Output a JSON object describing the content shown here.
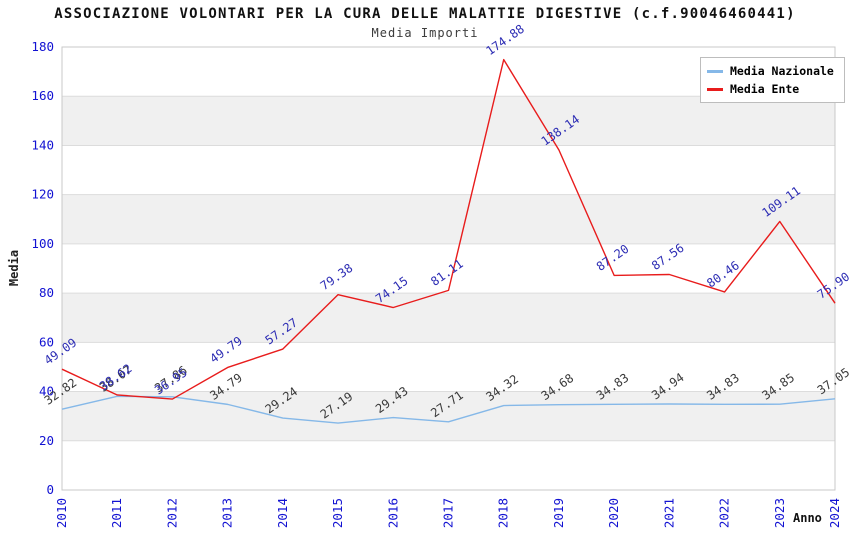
{
  "chart_data": {
    "type": "line",
    "title": "ASSOCIAZIONE VOLONTARI PER LA CURA DELLE MALATTIE DIGESTIVE (c.f.90046460441)",
    "subtitle": "Media Importi",
    "xlabel": "Anno",
    "ylabel": "Media",
    "x": [
      "2010",
      "2011",
      "2012",
      "2013",
      "2014",
      "2015",
      "2016",
      "2017",
      "2018",
      "2019",
      "2020",
      "2021",
      "2022",
      "2023",
      "2024"
    ],
    "series": [
      {
        "name": "Media Nazionale",
        "color": "#85b8e8",
        "label_color": "#3a3a3a",
        "values": [
          32.82,
          38.07,
          37.86,
          34.79,
          29.24,
          27.19,
          29.43,
          27.71,
          34.32,
          34.68,
          34.83,
          34.94,
          34.83,
          34.85,
          37.05
        ]
      },
      {
        "name": "Media Ente",
        "color": "#e81c1c",
        "label_color": "#2d2db4",
        "values": [
          49.09,
          38.62,
          36.95,
          49.79,
          57.27,
          79.38,
          74.15,
          81.11,
          174.88,
          138.14,
          87.2,
          87.56,
          80.46,
          109.11,
          75.9
        ]
      }
    ],
    "ylim": [
      0,
      180
    ],
    "ytick_step": 20,
    "y_ticks": [
      0,
      20,
      40,
      60,
      80,
      100,
      120,
      140,
      160,
      180
    ],
    "grid": true,
    "legend_position": "top-right",
    "band_colors": [
      "#ffffff",
      "#f0f0f0"
    ],
    "grid_color": "#dcdcdc",
    "frame_color": "#c9c9c9",
    "axis_tick_color": "#1212d2",
    "label_rotation_deg": -35,
    "xtick_rotation_deg": -90
  }
}
